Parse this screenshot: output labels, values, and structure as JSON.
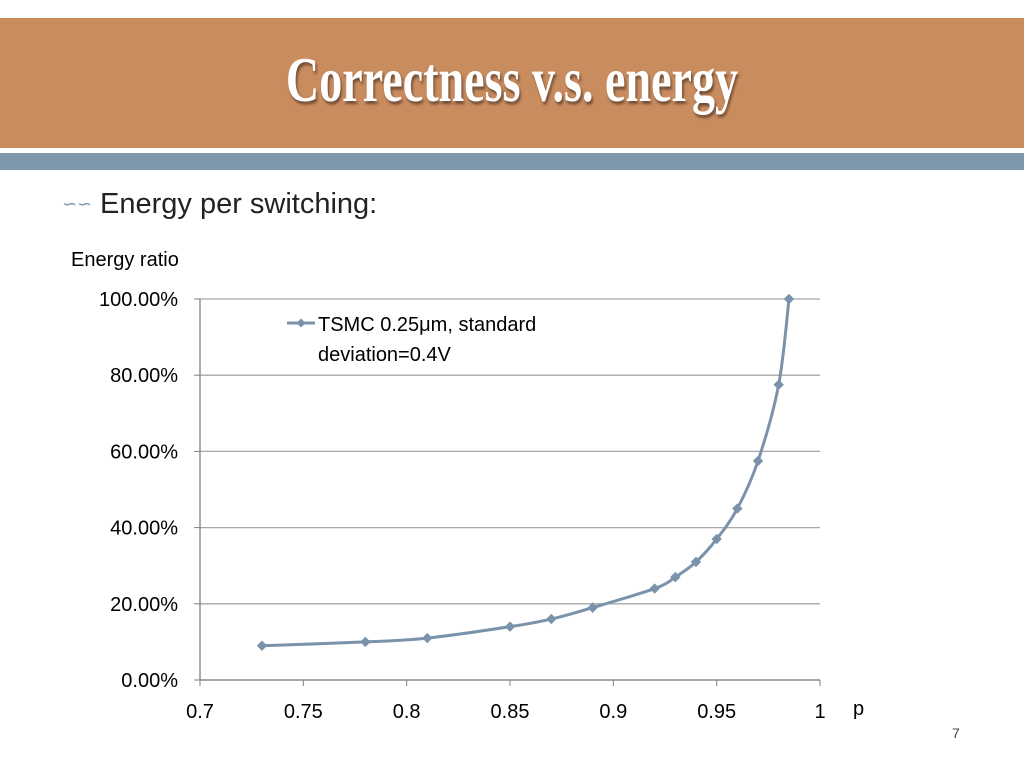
{
  "slide": {
    "title": "Correctness v.s. energy",
    "bullet_icon": "bullet-curl-icon",
    "bullet_text": "Energy per switching:",
    "page_number": "7"
  },
  "colors": {
    "title_bar": "#c98c5f",
    "accent_bar": "#7e98ab",
    "series_line": "#7a93aa"
  },
  "chart_data": {
    "type": "line",
    "ylabel": "Energy ratio",
    "xlabel": "p",
    "xlim": [
      0.7,
      1
    ],
    "ylim": [
      0,
      100
    ],
    "x_ticks": [
      "0.7",
      "0.75",
      "0.8",
      "0.85",
      "0.9",
      "0.95",
      "1"
    ],
    "y_ticks": [
      "0.00%",
      "20.00%",
      "40.00%",
      "60.00%",
      "80.00%",
      "100.00%"
    ],
    "grid": "horizontal",
    "legend_position": "top-left inside plot",
    "series": [
      {
        "name": "TSMC 0.25μm, standard deviation=0.4V",
        "x": [
          0.73,
          0.78,
          0.81,
          0.85,
          0.87,
          0.89,
          0.92,
          0.93,
          0.94,
          0.95,
          0.96,
          0.97,
          0.98,
          0.985
        ],
        "y": [
          9,
          10,
          11,
          14,
          16,
          19,
          24,
          27,
          31,
          37,
          45,
          57.5,
          77.5,
          100
        ]
      }
    ]
  }
}
